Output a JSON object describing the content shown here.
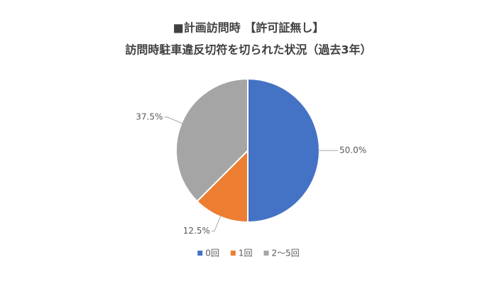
{
  "chart_data": {
    "type": "pie",
    "title": "■計画訪問時 【許可証無し】",
    "subtitle": "訪問時駐車違反切符を切られた状況（過去3年）",
    "categories": [
      "0回",
      "1回",
      "2～5回"
    ],
    "values": [
      50,
      12.5,
      37.5
    ],
    "value_labels": [
      "50.0%",
      "12.5%",
      "37.5%"
    ],
    "colors": [
      "#4472c4",
      "#ed7d31",
      "#a5a5a5"
    ],
    "legend": "bottom"
  }
}
